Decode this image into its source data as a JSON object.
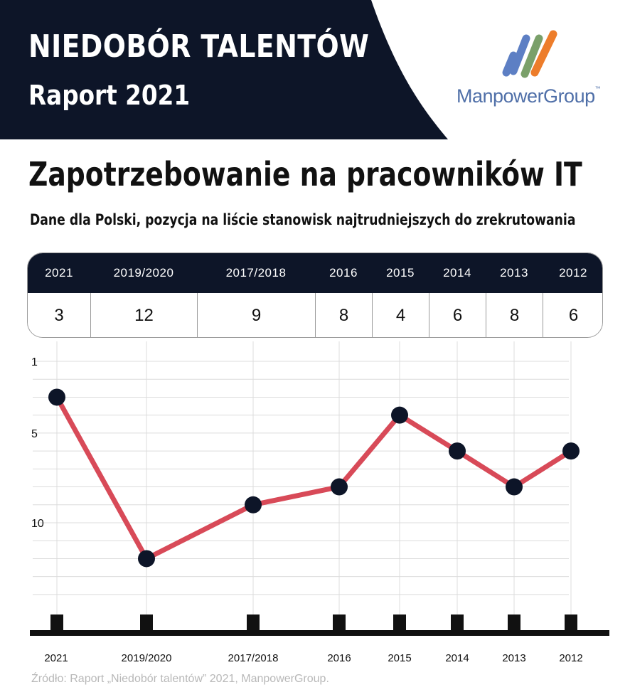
{
  "header": {
    "title": "NIEDOBÓR TALENTÓW",
    "subtitle": "Raport 2021",
    "logo_text": "ManpowerGroup",
    "logo_tm": "™",
    "colors": {
      "header_bg": "#0d1528",
      "logo_text": "#4f6fa8",
      "logo_stripes": [
        "#5d7fc4",
        "#5d7fc4",
        "#7aa06a",
        "#ed7d2b"
      ]
    }
  },
  "chart_data": {
    "type": "line",
    "title": "Zapotrzebowanie na pracowników IT",
    "subtitle": "Dane dla Polski, pozycja na liście stanowisk najtrudniejszych do zrekrutowania",
    "categories": [
      "2021",
      "2019/2020",
      "2017/2018",
      "2016",
      "2015",
      "2014",
      "2013",
      "2012"
    ],
    "values": [
      3,
      12,
      9,
      8,
      4,
      6,
      8,
      6
    ],
    "yticks": [
      1,
      5,
      10
    ],
    "ylim": [
      1,
      14
    ],
    "y_inverted": true,
    "grid": true,
    "line_color": "#d84a58",
    "marker_color": "#0d1528"
  },
  "table": {
    "columns": [
      "2021",
      "2019/2020",
      "2017/2018",
      "2016",
      "2015",
      "2014",
      "2013",
      "2012"
    ],
    "values": [
      "3",
      "12",
      "9",
      "8",
      "4",
      "6",
      "8",
      "6"
    ]
  },
  "footer": {
    "source": "Źródło: Raport „Niedobór talentów” 2021, ManpowerGroup."
  }
}
